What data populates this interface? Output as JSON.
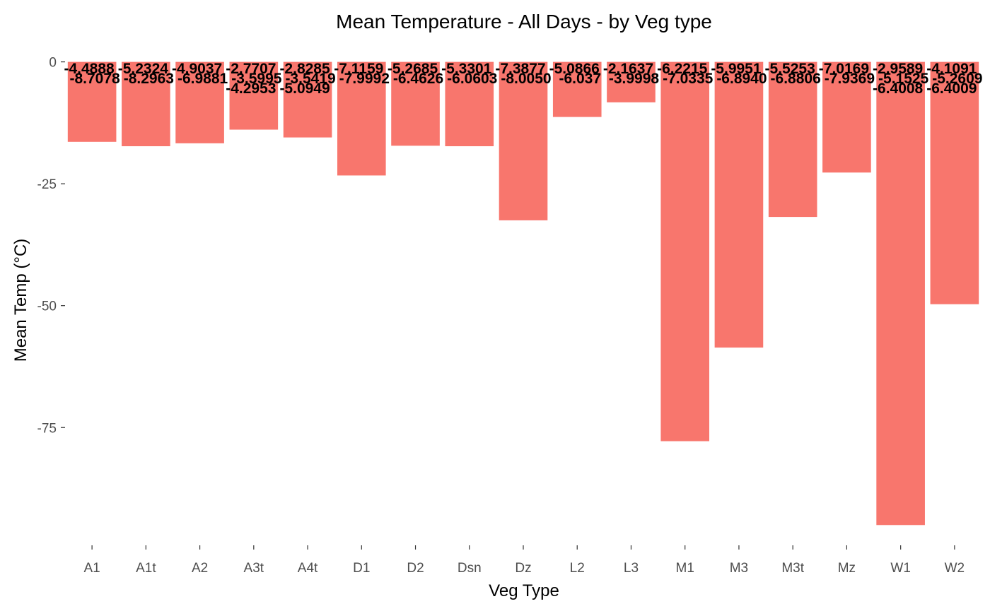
{
  "chart_data": {
    "type": "bar",
    "title": "Mean Temperature - All Days - by Veg type",
    "xlabel": "Veg Type",
    "ylabel": "Mean Temp (°C)",
    "ylim": [
      -98,
      4
    ],
    "yticks": [
      0,
      -25,
      -50,
      -75
    ],
    "ytick_labels": [
      "0",
      "-25",
      "-50",
      "-75"
    ],
    "grid": false,
    "bar_color": "#F8766D",
    "categories": [
      "A1",
      "A1t",
      "A2",
      "A3t",
      "A4t",
      "D1",
      "D2",
      "Dsn",
      "Dz",
      "L2",
      "L3",
      "M1",
      "M3",
      "M3t",
      "Mz",
      "W1",
      "W2"
    ],
    "values": [
      -16.4,
      -17.3,
      -16.7,
      -13.9,
      -15.5,
      -23.3,
      -17.2,
      -17.3,
      -32.5,
      -11.3,
      -8.3,
      -77.8,
      -58.6,
      -31.8,
      -22.7,
      -95.0,
      -49.7
    ],
    "data_labels": [
      {
        "category": "A1",
        "texts": [
          "-4.4888",
          "-8.7078"
        ]
      },
      {
        "category": "A1t",
        "texts": [
          "-5.2324",
          "-8.2963"
        ]
      },
      {
        "category": "A2",
        "texts": [
          "-4.9037",
          "-6.9881"
        ]
      },
      {
        "category": "A3t",
        "texts": [
          "-2.7707",
          "-3.5995",
          "-4.2953"
        ]
      },
      {
        "category": "A4t",
        "texts": [
          "-2.8285",
          "-3.5419",
          "-5.0949"
        ]
      },
      {
        "category": "D1",
        "texts": [
          "-7.1159",
          "-7.9992"
        ]
      },
      {
        "category": "D2",
        "texts": [
          "-5.2685",
          "-6.4626"
        ]
      },
      {
        "category": "Dsn",
        "texts": [
          "-5.3301",
          "-6.0603"
        ]
      },
      {
        "category": "Dz",
        "texts": [
          "-7.3877",
          "-8.0050"
        ]
      },
      {
        "category": "L2",
        "texts": [
          "-5.0866",
          "-6.037"
        ]
      },
      {
        "category": "L3",
        "texts": [
          "-2.1637",
          "-3.9998"
        ]
      },
      {
        "category": "M1",
        "texts": [
          "-6.2215",
          "-7.0335"
        ]
      },
      {
        "category": "M3",
        "texts": [
          "-5.9951",
          "-6.8940"
        ]
      },
      {
        "category": "M3t",
        "texts": [
          "-5.5253",
          "-6.8806"
        ]
      },
      {
        "category": "Mz",
        "texts": [
          "-7.0169",
          "-7.9369"
        ]
      },
      {
        "category": "W1",
        "texts": [
          "-2.9589",
          "-5.1525",
          "-6.4008"
        ]
      },
      {
        "category": "W2",
        "texts": [
          "-4.1091",
          "-5.2609",
          "-6.4009"
        ]
      }
    ]
  }
}
